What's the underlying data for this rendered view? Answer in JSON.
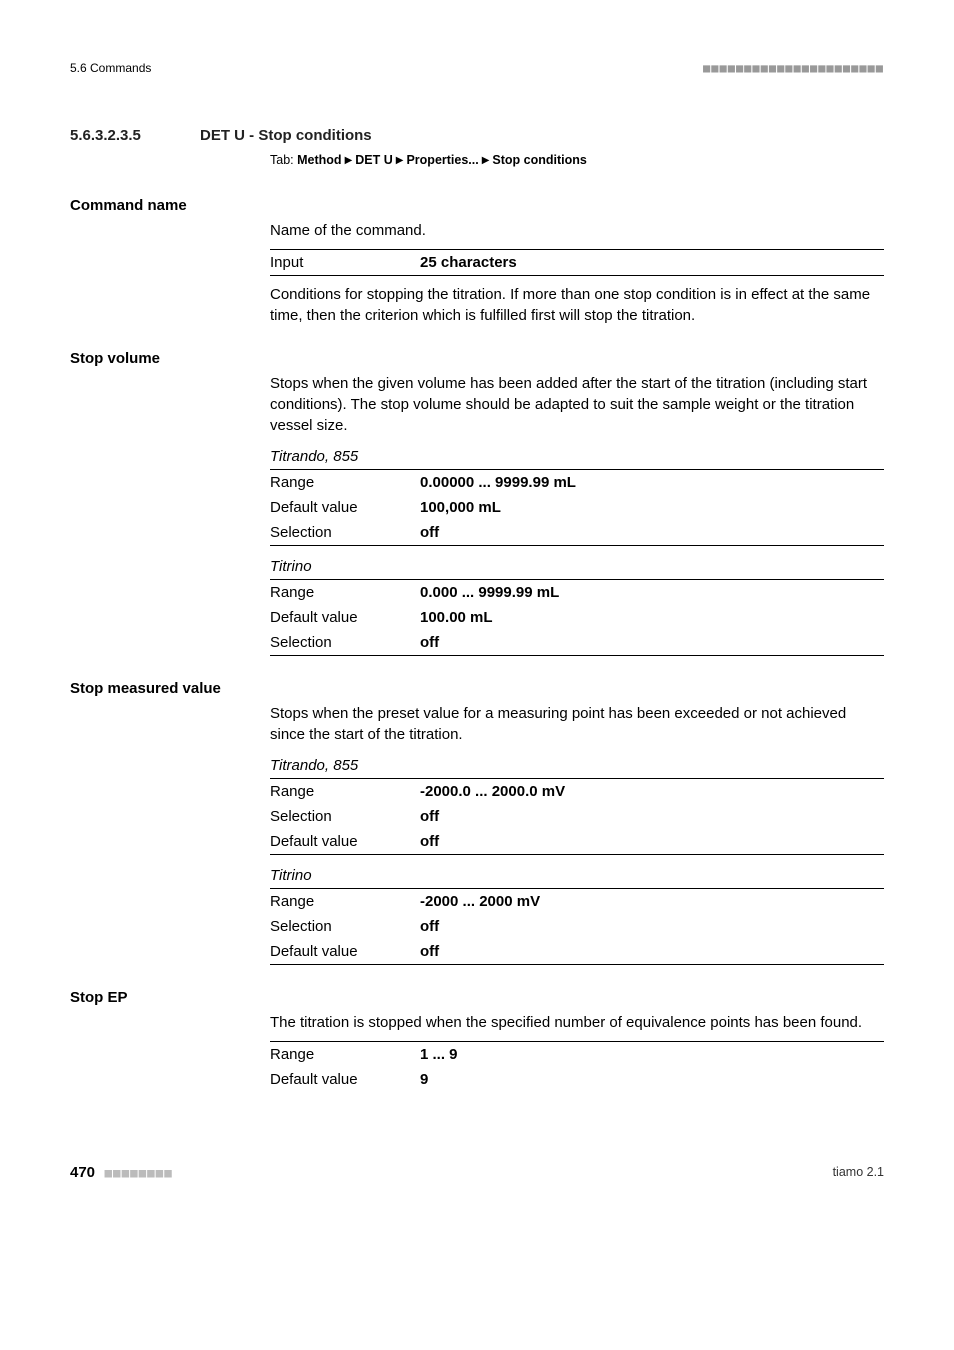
{
  "header": {
    "left": "5.6 Commands",
    "dashes": "■■■■■■■■■■■■■■■■■■■■■■"
  },
  "section": {
    "number": "5.6.3.2.3.5",
    "title": "DET U - Stop conditions",
    "tab_label": "Tab:",
    "tab_path_parts": [
      "Method",
      "DET U",
      "Properties...",
      "Stop conditions"
    ]
  },
  "command_name": {
    "label": "Command name",
    "desc": "Name of the command.",
    "input_key": "Input",
    "input_val": "25 characters",
    "after": "Conditions for stopping the titration. If more than one stop condition is in effect at the same time, then the criterion which is fulfilled first will stop the titration."
  },
  "stop_volume": {
    "label": "Stop volume",
    "desc": "Stops when the given volume has been added after the start of the titration (including start conditions). The stop volume should be adapted to suit the sample weight or the titration vessel size.",
    "groups": [
      {
        "name": "Titrando, 855",
        "rows": [
          {
            "k": "Range",
            "v": "0.00000 ... 9999.99 mL"
          },
          {
            "k": "Default value",
            "v": "100,000 mL"
          },
          {
            "k": "Selection",
            "v": "off"
          }
        ]
      },
      {
        "name": "Titrino",
        "rows": [
          {
            "k": "Range",
            "v": "0.000 ... 9999.99 mL"
          },
          {
            "k": "Default value",
            "v": "100.00 mL"
          },
          {
            "k": "Selection",
            "v": "off"
          }
        ]
      }
    ]
  },
  "stop_measured": {
    "label": "Stop measured value",
    "desc": "Stops when the preset value for a measuring point has been exceeded or not achieved since the start of the titration.",
    "groups": [
      {
        "name": "Titrando, 855",
        "rows": [
          {
            "k": "Range",
            "v": "-2000.0 ... 2000.0 mV"
          },
          {
            "k": "Selection",
            "v": "off"
          },
          {
            "k": "Default value",
            "v": "off"
          }
        ]
      },
      {
        "name": "Titrino",
        "rows": [
          {
            "k": "Range",
            "v": "-2000 ... 2000 mV"
          },
          {
            "k": "Selection",
            "v": "off"
          },
          {
            "k": "Default value",
            "v": "off"
          }
        ]
      }
    ]
  },
  "stop_ep": {
    "label": "Stop EP",
    "desc": "The titration is stopped when the specified number of equivalence points has been found.",
    "rows": [
      {
        "k": "Range",
        "v": "1 ... 9"
      },
      {
        "k": "Default value",
        "v": "9"
      }
    ]
  },
  "footer": {
    "page": "470",
    "dashes": "■■■■■■■■",
    "right": "tiamo 2.1"
  }
}
